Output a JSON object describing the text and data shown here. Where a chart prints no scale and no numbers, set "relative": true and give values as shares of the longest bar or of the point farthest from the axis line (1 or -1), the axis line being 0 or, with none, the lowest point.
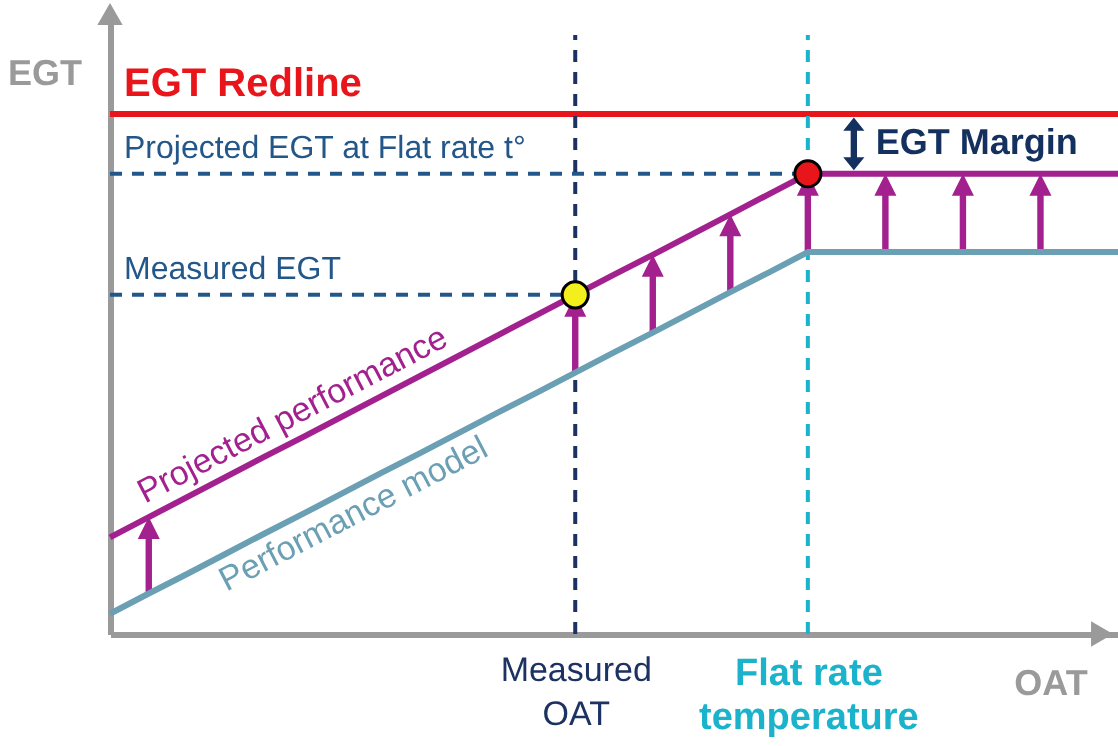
{
  "chart_data": {
    "type": "line",
    "relative": true,
    "xlabel": "OAT",
    "ylabel": "EGT",
    "tick_labels": "x",
    "grid": false,
    "categories": [
      null,
      null,
      null,
      null,
      null,
      null,
      null,
      null,
      null,
      null,
      null,
      null,
      "Measured\nOAT",
      null,
      null,
      null,
      null,
      null,
      "Flat rate\ntemperature",
      null,
      null,
      null,
      null,
      null,
      null,
      null,
      null
    ],
    "series": [
      {
        "name": "Projected performance",
        "color": "#a3218e",
        "values": [
          0.21,
          0.254,
          0.298,
          0.342,
          0.386,
          0.429,
          0.473,
          0.517,
          0.561,
          0.605,
          0.649,
          0.693,
          0.737,
          0.781,
          0.824,
          0.868,
          0.912,
          0.956,
          1,
          1,
          1,
          1,
          1,
          1,
          1,
          1,
          1
        ]
      },
      {
        "name": "Performance model",
        "color": "#6b9fb4",
        "values": [
          0.044,
          0.088,
          0.131,
          0.175,
          0.219,
          0.262,
          0.306,
          0.35,
          0.393,
          0.437,
          0.481,
          0.524,
          0.568,
          0.612,
          0.655,
          0.699,
          0.743,
          0.786,
          0.83,
          0.83,
          0.83,
          0.83,
          0.83,
          0.83,
          0.83,
          0.83,
          0.83
        ]
      },
      {
        "type": "scatter",
        "marker": "circle",
        "color": "#f2ef1c",
        "x": [
          "Measured\nOAT"
        ],
        "values": [
          0.737
        ]
      },
      {
        "type": "scatter",
        "marker": "circle",
        "color": "#e8161b",
        "x": [
          "Flat rate\ntemperature"
        ],
        "values": [
          1
        ]
      }
    ],
    "ref_lines": [
      {
        "axis": "y",
        "value": 1.13,
        "label": "EGT Redline",
        "color": "#e8161b",
        "line_style": "solid"
      },
      {
        "axis": "y",
        "value": 1,
        "label": "Projected EGT at Flat rate t°",
        "color": "#245789",
        "line_style": "dashed"
      },
      {
        "axis": "y",
        "value": 0.737,
        "label": "Measured EGT",
        "color": "#245789",
        "line_style": "dashed"
      },
      {
        "axis": "x",
        "value": "Measured\nOAT",
        "color": "#1c3263",
        "line_style": "dashed"
      },
      {
        "axis": "x",
        "value": "Flat rate\ntemperature",
        "color": "#1bb3cc",
        "line_style": "dashed"
      }
    ],
    "annotations": [
      {
        "text": "EGT Margin",
        "x": "Flat rate\ntemperature",
        "y": 1.065
      }
    ]
  }
}
